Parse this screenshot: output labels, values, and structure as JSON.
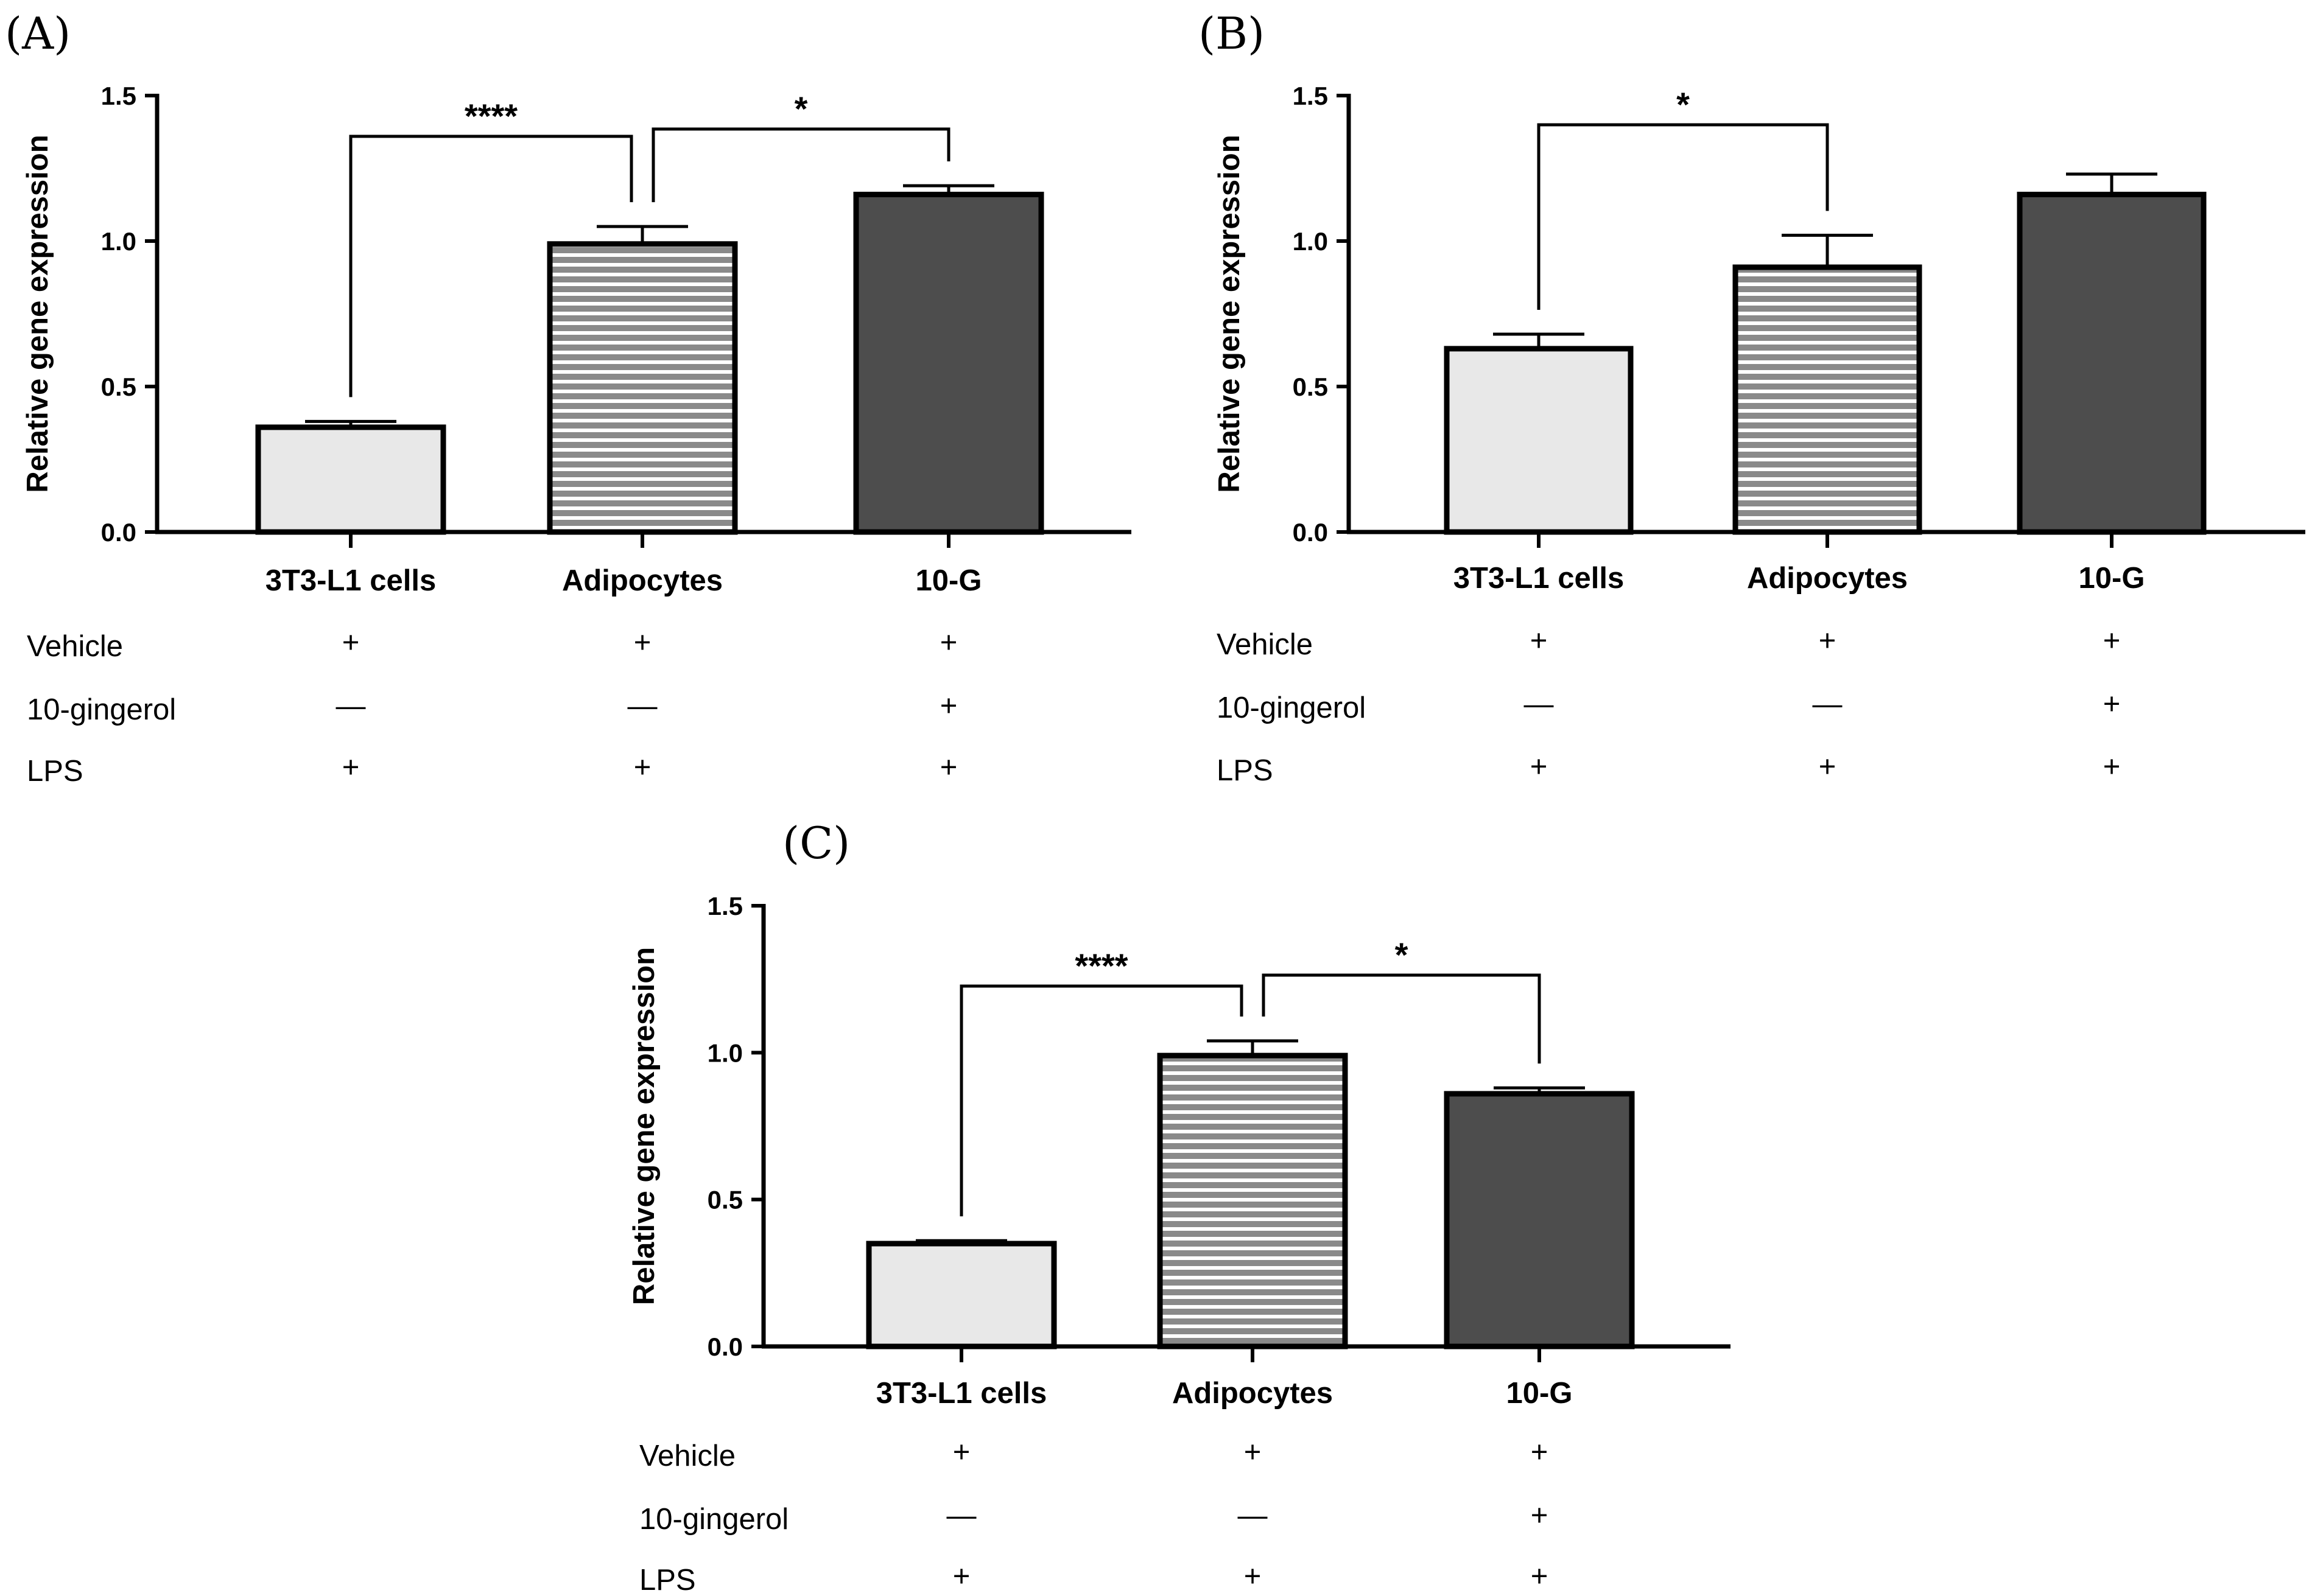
{
  "colors": {
    "bar_fills": [
      "#e8e8e8",
      "#8a8a8a",
      "#4d4d4d"
    ],
    "stripe": "#ffffff",
    "outline": "#000000"
  },
  "treatment_symbols": {
    "present": "+",
    "absent": "—"
  },
  "chart_data": [
    {
      "panel": "(A)",
      "type": "bar",
      "ylabel": "Relative gene expression",
      "ylim": [
        0,
        1.5
      ],
      "yticks": [
        "0.0",
        "0.5",
        "1.0",
        "1.5"
      ],
      "categories": [
        "3T3-L1 cells",
        "Adipocytes",
        "10-G"
      ],
      "values": [
        0.36,
        0.99,
        1.16
      ],
      "errors": [
        0.02,
        0.06,
        0.03
      ],
      "significance": [
        {
          "from": 0,
          "to": 1,
          "label": "****"
        },
        {
          "from": 1,
          "to": 2,
          "label": "*"
        }
      ],
      "treatments": [
        {
          "label": "Vehicle",
          "values": [
            "+",
            "+",
            "+"
          ]
        },
        {
          "label": "10-gingerol",
          "values": [
            "—",
            "—",
            "+"
          ]
        },
        {
          "label": "LPS",
          "values": [
            "+",
            "+",
            "+"
          ]
        }
      ]
    },
    {
      "panel": "(B)",
      "type": "bar",
      "ylabel": "Relative gene expression",
      "ylim": [
        0,
        1.5
      ],
      "yticks": [
        "0.0",
        "0.5",
        "1.0",
        "1.5"
      ],
      "categories": [
        "3T3-L1 cells",
        "Adipocytes",
        "10-G"
      ],
      "values": [
        0.63,
        0.91,
        1.16
      ],
      "errors": [
        0.05,
        0.11,
        0.07
      ],
      "significance": [
        {
          "from": 0,
          "to": 1,
          "label": "*"
        }
      ],
      "treatments": [
        {
          "label": "Vehicle",
          "values": [
            "+",
            "+",
            "+"
          ]
        },
        {
          "label": "10-gingerol",
          "values": [
            "—",
            "—",
            "+"
          ]
        },
        {
          "label": "LPS",
          "values": [
            "+",
            "+",
            "+"
          ]
        }
      ]
    },
    {
      "panel": "(C)",
      "type": "bar",
      "ylabel": "Relative gene expression",
      "ylim": [
        0,
        1.5
      ],
      "yticks": [
        "0.0",
        "0.5",
        "1.0",
        "1.5"
      ],
      "categories": [
        "3T3-L1 cells",
        "Adipocytes",
        "10-G"
      ],
      "values": [
        0.35,
        0.99,
        0.86
      ],
      "errors": [
        0.01,
        0.05,
        0.02
      ],
      "significance": [
        {
          "from": 0,
          "to": 1,
          "label": "****"
        },
        {
          "from": 1,
          "to": 2,
          "label": "*"
        }
      ],
      "treatments": [
        {
          "label": "Vehicle",
          "values": [
            "+",
            "+",
            "+"
          ]
        },
        {
          "label": "10-gingerol",
          "values": [
            "—",
            "—",
            "+"
          ]
        },
        {
          "label": "LPS",
          "values": [
            "+",
            "+",
            "+"
          ]
        }
      ]
    }
  ]
}
